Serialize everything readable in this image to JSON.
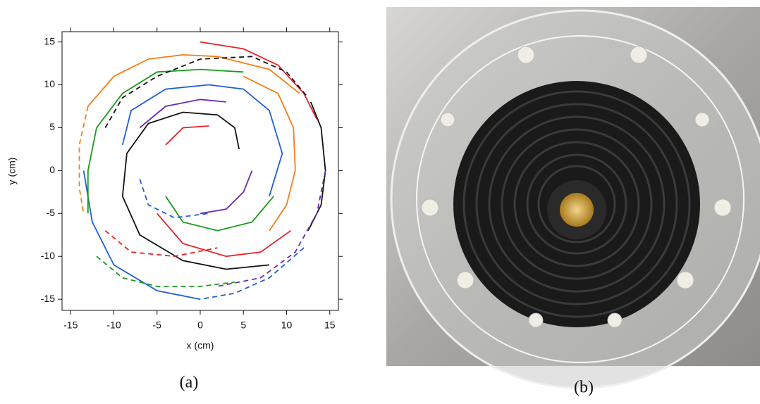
{
  "chart_data": {
    "type": "line",
    "x_label": "x (cm)",
    "y_label": "y (cm)",
    "xlim": [
      -16,
      16
    ],
    "ylim": [
      -16.3,
      16.2
    ],
    "xticks": [
      -15,
      -10,
      -5,
      0,
      5,
      10,
      15
    ],
    "yticks": [
      -15,
      -10,
      -5,
      0,
      5,
      10,
      15
    ],
    "series": [
      {
        "color": "#e8232a",
        "style": "solid",
        "x": [
          0,
          5,
          9,
          12,
          13.5
        ],
        "y": [
          15,
          14.2,
          12.3,
          9,
          6
        ]
      },
      {
        "color": "#111111",
        "style": "solid",
        "x": [
          12.8,
          14,
          14.5,
          14,
          12.5
        ],
        "y": [
          8,
          5,
          0,
          -4,
          -7
        ]
      },
      {
        "color": "#6a2bb5",
        "style": "dashed",
        "x": [
          14.5,
          13.5,
          11,
          7,
          2
        ],
        "y": [
          0,
          -5,
          -9.5,
          -12.5,
          -13.5
        ]
      },
      {
        "color": "#1f5fd6",
        "style": "dashed",
        "x": [
          12,
          8,
          4,
          0
        ],
        "y": [
          -9,
          -12.5,
          -14.3,
          -15
        ]
      },
      {
        "color": "#1f5fd6",
        "style": "solid",
        "x": [
          0,
          -5,
          -10,
          -12.5,
          -13.5
        ],
        "y": [
          -15,
          -14,
          -11,
          -6,
          0
        ]
      },
      {
        "color": "#1a9a1a",
        "style": "dashed",
        "x": [
          -12,
          -9,
          -5,
          0,
          4
        ],
        "y": [
          -10,
          -12.5,
          -13.5,
          -13.5,
          -13
        ]
      },
      {
        "color": "#f57f17",
        "style": "solid",
        "x": [
          -13,
          -10,
          -6,
          -2,
          2,
          8,
          11.5
        ],
        "y": [
          7.5,
          11,
          13,
          13.5,
          13.3,
          11.8,
          9
        ]
      },
      {
        "color": "#f57f17",
        "style": "dashed",
        "x": [
          -13,
          -14,
          -14,
          -13.5
        ],
        "y": [
          7.5,
          3,
          -2,
          -5
        ]
      },
      {
        "color": "#1a9a1a",
        "style": "solid",
        "x": [
          -13,
          -13,
          -12,
          -9,
          -5,
          0,
          5
        ],
        "y": [
          -5,
          0,
          5,
          9,
          11.5,
          11.8,
          11.5
        ]
      },
      {
        "color": "#111111",
        "style": "dashed",
        "x": [
          -11,
          -9,
          -5,
          0,
          6,
          10,
          12.5
        ],
        "y": [
          5,
          8.5,
          11,
          13,
          13.3,
          11.5,
          8.5
        ]
      },
      {
        "color": "#f57f17",
        "style": "solid",
        "x": [
          5,
          9,
          10.8,
          11,
          10,
          8
        ],
        "y": [
          11,
          9,
          5,
          0,
          -4,
          -7
        ]
      },
      {
        "color": "#1f5fd6",
        "style": "solid",
        "x": [
          -9,
          -8,
          -4,
          1,
          5,
          8,
          9.5,
          8
        ],
        "y": [
          3,
          7,
          9.5,
          10,
          9.5,
          7,
          2,
          -3
        ]
      },
      {
        "color": "#6a2bb5",
        "style": "solid",
        "x": [
          -7,
          -4,
          0,
          3
        ],
        "y": [
          5,
          7.5,
          8.3,
          8
        ]
      },
      {
        "color": "#111111",
        "style": "solid",
        "x": [
          4.5,
          4,
          2,
          -2,
          -6,
          -8.5,
          -9,
          -7,
          -2,
          3,
          8
        ],
        "y": [
          2.5,
          5,
          6.5,
          6.8,
          5.5,
          2,
          -3,
          -7.5,
          -10.5,
          -11.5,
          -11
        ]
      },
      {
        "color": "#e8232a",
        "style": "solid",
        "x": [
          -4,
          -2,
          1
        ],
        "y": [
          3,
          5,
          5.2
        ]
      },
      {
        "color": "#e8232a",
        "style": "solid",
        "x": [
          -5,
          -2,
          3,
          7,
          10.5
        ],
        "y": [
          -5,
          -8.5,
          -10,
          -9.5,
          -7
        ]
      },
      {
        "color": "#e8232a",
        "style": "dashed",
        "x": [
          -11,
          -8,
          -3,
          2
        ],
        "y": [
          -7,
          -9.5,
          -10,
          -9
        ]
      },
      {
        "color": "#1a9a1a",
        "style": "solid",
        "x": [
          -4,
          -2,
          2,
          6,
          8.5
        ],
        "y": [
          -3,
          -6,
          -7,
          -6,
          -3
        ]
      },
      {
        "color": "#6a2bb5",
        "style": "solid",
        "x": [
          0,
          3,
          5,
          6
        ],
        "y": [
          -5,
          -4.5,
          -2.5,
          0
        ]
      },
      {
        "color": "#1f5fd6",
        "style": "dashed",
        "x": [
          -7,
          -6,
          -3,
          1
        ],
        "y": [
          -1,
          -4,
          -5.5,
          -5
        ]
      }
    ]
  },
  "captions": {
    "a": "(a)",
    "b": "(b)"
  }
}
